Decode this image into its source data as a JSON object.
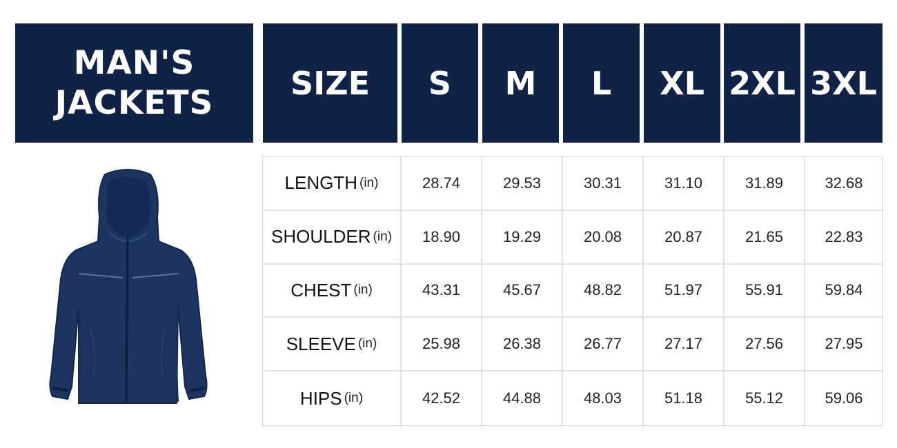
{
  "title": {
    "line1": "MAN'S",
    "line2": "JACKETS"
  },
  "header": {
    "size_label": "SIZE",
    "sizes": [
      "S",
      "M",
      "L",
      "XL",
      "2XL",
      "3XL"
    ]
  },
  "rows": [
    {
      "label": "LENGTH",
      "unit": "(in)",
      "values": [
        "28.74",
        "29.53",
        "30.31",
        "31.10",
        "31.89",
        "32.68"
      ]
    },
    {
      "label": "SHOULDER",
      "unit": "(in)",
      "values": [
        "18.90",
        "19.29",
        "20.08",
        "20.87",
        "21.65",
        "22.83"
      ]
    },
    {
      "label": "CHEST",
      "unit": "(in)",
      "values": [
        "43.31",
        "45.67",
        "48.82",
        "51.97",
        "55.91",
        "59.84"
      ]
    },
    {
      "label": "SLEEVE",
      "unit": "(in)",
      "values": [
        "25.98",
        "26.38",
        "26.77",
        "27.17",
        "27.56",
        "27.95"
      ]
    },
    {
      "label": "HIPS",
      "unit": "(in)",
      "values": [
        "42.52",
        "44.88",
        "48.03",
        "51.18",
        "55.12",
        "59.06"
      ]
    }
  ],
  "colors": {
    "header_bg": "#102347",
    "jacket": "#1d3461"
  }
}
